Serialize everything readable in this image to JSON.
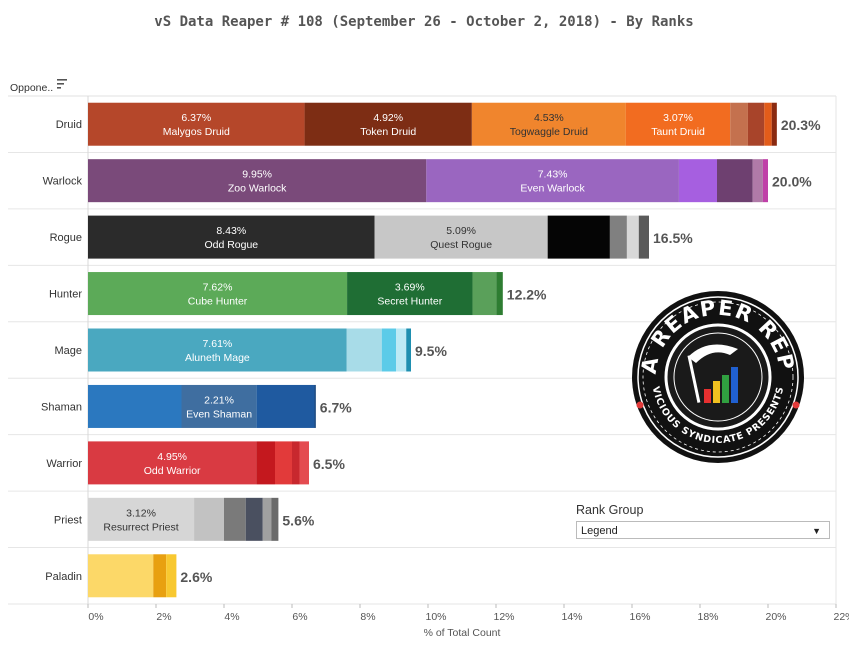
{
  "chart_data": {
    "type": "bar",
    "orientation": "horizontal",
    "stacked": true,
    "title": "vS Data Reaper #  108 (September 26 - October 2, 2018) - By Ranks",
    "xlabel": "% of Total Count",
    "ylabel": "Oppone..",
    "xlim": [
      0,
      22
    ],
    "xticks": [
      "0%",
      "2%",
      "4%",
      "6%",
      "8%",
      "10%",
      "12%",
      "14%",
      "16%",
      "18%",
      "20%",
      "22%"
    ],
    "grid": true,
    "categories": [
      "Druid",
      "Warlock",
      "Rogue",
      "Hunter",
      "Mage",
      "Shaman",
      "Warrior",
      "Priest",
      "Paladin"
    ],
    "totals": [
      "20.3%",
      "20.0%",
      "16.5%",
      "12.2%",
      "9.5%",
      "6.7%",
      "6.5%",
      "5.6%",
      "2.6%"
    ],
    "rows": [
      {
        "category": "Druid",
        "segments": [
          {
            "value": 6.37,
            "pct": "6.37%",
            "name": "Malygos Druid",
            "color": "#b5472a"
          },
          {
            "value": 4.92,
            "pct": "4.92%",
            "name": "Token Druid",
            "color": "#7d2d14"
          },
          {
            "value": 4.53,
            "pct": "4.53%",
            "name": "Togwaggle Druid",
            "color": "#f0852d"
          },
          {
            "value": 3.07,
            "pct": "3.07%",
            "name": "Taunt Druid",
            "color": "#f26c20"
          },
          {
            "value": 0.52,
            "color": "#c4714e"
          },
          {
            "value": 0.48,
            "color": "#a8442a"
          },
          {
            "value": 0.22,
            "color": "#e25c1a"
          },
          {
            "value": 0.15,
            "color": "#8a2a10"
          }
        ]
      },
      {
        "category": "Warlock",
        "segments": [
          {
            "value": 9.95,
            "pct": "9.95%",
            "name": "Zoo Warlock",
            "color": "#7a4a7a"
          },
          {
            "value": 7.43,
            "pct": "7.43%",
            "name": "Even Warlock",
            "color": "#9a66c0"
          },
          {
            "value": 1.12,
            "color": "#a65fe0"
          },
          {
            "value": 1.05,
            "color": "#6e4070"
          },
          {
            "value": 0.3,
            "color": "#b07aa8"
          },
          {
            "value": 0.15,
            "color": "#c040a8"
          }
        ]
      },
      {
        "category": "Rogue",
        "segments": [
          {
            "value": 8.43,
            "pct": "8.43%",
            "name": "Odd Rogue",
            "color": "#2b2b2b"
          },
          {
            "value": 5.09,
            "pct": "5.09%",
            "name": "Quest Rogue",
            "color": "#c7c7c7"
          },
          {
            "value": 1.83,
            "color": "#050505"
          },
          {
            "value": 0.5,
            "color": "#808080"
          },
          {
            "value": 0.35,
            "color": "#d8d8d8"
          },
          {
            "value": 0.3,
            "color": "#5a5a5a"
          }
        ]
      },
      {
        "category": "Hunter",
        "segments": [
          {
            "value": 7.62,
            "pct": "7.62%",
            "name": "Cube Hunter",
            "color": "#5caa58"
          },
          {
            "value": 3.69,
            "pct": "3.69%",
            "name": "Secret Hunter",
            "color": "#1f6e34"
          },
          {
            "value": 0.7,
            "color": "#5aa05a"
          },
          {
            "value": 0.19,
            "color": "#2e7d32"
          }
        ]
      },
      {
        "category": "Mage",
        "segments": [
          {
            "value": 7.61,
            "pct": "7.61%",
            "name": "Aluneth Mage",
            "color": "#4aa8c0"
          },
          {
            "value": 1.03,
            "color": "#a8dce8"
          },
          {
            "value": 0.42,
            "color": "#5ccbe8"
          },
          {
            "value": 0.3,
            "color": "#bdeaf5"
          },
          {
            "value": 0.14,
            "color": "#1e8fb0"
          }
        ]
      },
      {
        "category": "Shaman",
        "segments": [
          {
            "value": 2.75,
            "color": "#2b78bf"
          },
          {
            "value": 2.21,
            "pct": "2.21%",
            "name": "Even Shaman",
            "color": "#3f6ea0"
          },
          {
            "value": 1.7,
            "color": "#1f5aa0"
          },
          {
            "value": 0.04,
            "color": "#0e3e78"
          }
        ]
      },
      {
        "category": "Warrior",
        "segments": [
          {
            "value": 4.95,
            "pct": "4.95%",
            "name": "Odd Warrior",
            "color": "#d93a42"
          },
          {
            "value": 0.55,
            "color": "#c4181e"
          },
          {
            "value": 0.5,
            "color": "#e23a3a"
          },
          {
            "value": 0.22,
            "color": "#c8282e"
          },
          {
            "value": 0.28,
            "color": "#e44b50"
          }
        ]
      },
      {
        "category": "Priest",
        "segments": [
          {
            "value": 3.12,
            "pct": "3.12%",
            "name": "Resurrect Priest",
            "color": "#d6d6d6"
          },
          {
            "value": 0.88,
            "color": "#c2c2c2"
          },
          {
            "value": 0.64,
            "color": "#7a7a7a"
          },
          {
            "value": 0.5,
            "color": "#4a5060"
          },
          {
            "value": 0.25,
            "color": "#a0a0a0"
          },
          {
            "value": 0.21,
            "color": "#6a6a6a"
          }
        ]
      },
      {
        "category": "Paladin",
        "segments": [
          {
            "value": 1.92,
            "color": "#fcd868"
          },
          {
            "value": 0.38,
            "color": "#e8a010"
          },
          {
            "value": 0.3,
            "color": "#f8c830"
          }
        ]
      }
    ]
  },
  "logo": {
    "text": "DATA REAPER REPORT",
    "subtext": "VICIOUS SYNDICATE PRESENTS"
  },
  "rank_group": {
    "title": "Rank Group",
    "selected": "Legend"
  }
}
